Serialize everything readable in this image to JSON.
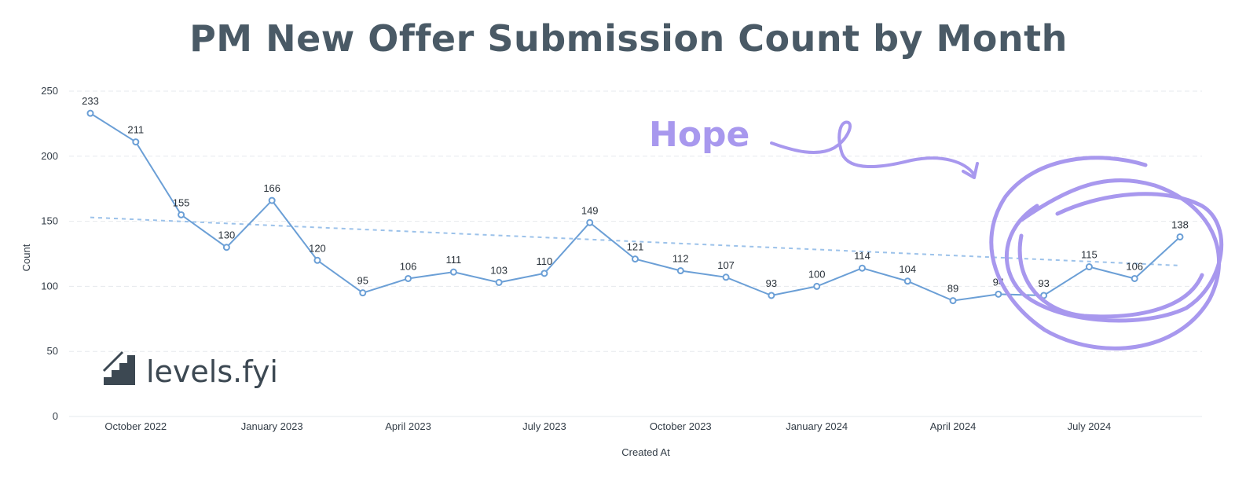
{
  "colors": {
    "line": "#6b9fd6",
    "trend": "#9cc2ea",
    "grid": "#e6e9ed",
    "title": "#4a5a66",
    "annotation": "#a898ee",
    "logo": "#3c4852"
  },
  "logo": {
    "text": "levels.fyi",
    "icon": "stairs-logo-icon"
  },
  "annotation": {
    "text": "Hope",
    "icon": "hand-drawn-arrow-icon"
  },
  "chart_data": {
    "type": "line",
    "title": "PM New Offer Submission Count by Month",
    "xlabel": "Created At",
    "ylabel": "Count",
    "ylim": [
      0,
      250
    ],
    "y_ticks": [
      0,
      50,
      100,
      150,
      200,
      250
    ],
    "grid": true,
    "x": [
      "2022-09",
      "2022-10",
      "2022-11",
      "2022-12",
      "2023-01",
      "2023-02",
      "2023-03",
      "2023-04",
      "2023-05",
      "2023-06",
      "2023-07",
      "2023-08",
      "2023-09",
      "2023-10",
      "2023-11",
      "2023-12",
      "2024-01",
      "2024-02",
      "2024-03",
      "2024-04",
      "2024-05",
      "2024-06",
      "2024-07",
      "2024-08",
      "2024-09"
    ],
    "x_tick_labels": [
      {
        "x": "2022-10",
        "label": "October 2022"
      },
      {
        "x": "2023-01",
        "label": "January 2023"
      },
      {
        "x": "2023-04",
        "label": "April 2023"
      },
      {
        "x": "2023-07",
        "label": "July 2023"
      },
      {
        "x": "2023-10",
        "label": "October 2023"
      },
      {
        "x": "2024-01",
        "label": "January 2024"
      },
      {
        "x": "2024-04",
        "label": "April 2024"
      },
      {
        "x": "2024-07",
        "label": "July 2024"
      }
    ],
    "series": [
      {
        "values": [
          233,
          211,
          155,
          130,
          166,
          120,
          95,
          106,
          111,
          103,
          110,
          149,
          121,
          112,
          107,
          93,
          100,
          114,
          104,
          89,
          94,
          93,
          115,
          106,
          138
        ]
      }
    ],
    "trendline": {
      "start": 153,
      "end": 116
    }
  }
}
